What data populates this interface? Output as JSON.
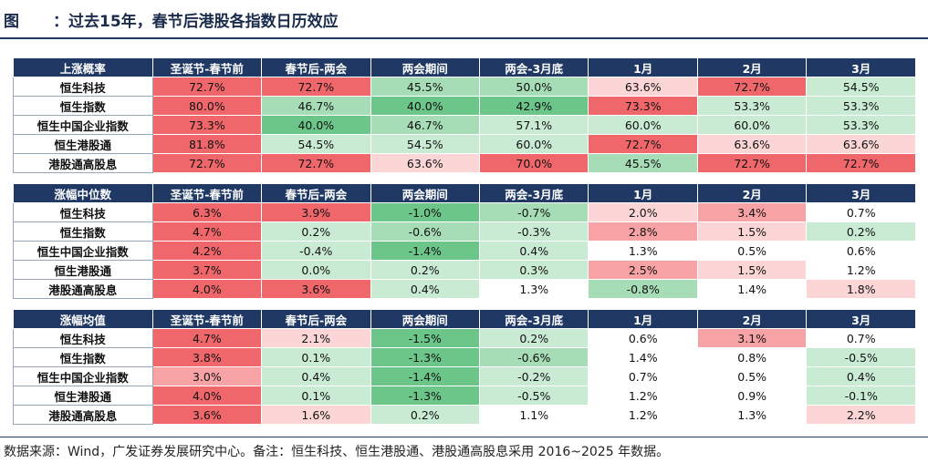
{
  "title_prefix": "图",
  "title_text": "：过去15年，春节后港股各指数日历效应",
  "footnote": "数据来源：Wind，广发证券发展研究中心。备注：恒生科技、恒生港股通、港股通高股息采用 2016~2025 年数据。",
  "columns": [
    "圣诞节-春节前",
    "春节后-两会",
    "两会期间",
    "两会-3月底",
    "1月",
    "2月",
    "3月"
  ],
  "tables": [
    {
      "header": "上涨概率",
      "rows": [
        {
          "label": "恒生科技",
          "cells": [
            "72.7%",
            "72.7%",
            "45.5%",
            "50.0%",
            "63.6%",
            "72.7%",
            "54.5%"
          ]
        },
        {
          "label": "恒生指数",
          "cells": [
            "80.0%",
            "46.7%",
            "40.0%",
            "42.9%",
            "73.3%",
            "53.3%",
            "53.3%"
          ]
        },
        {
          "label": "恒生中国企业指数",
          "cells": [
            "73.3%",
            "40.0%",
            "46.7%",
            "57.1%",
            "60.0%",
            "60.0%",
            "53.3%"
          ]
        },
        {
          "label": "恒生港股通",
          "cells": [
            "81.8%",
            "54.5%",
            "54.5%",
            "60.0%",
            "72.7%",
            "63.6%",
            "63.6%"
          ]
        },
        {
          "label": "港股通高股息",
          "cells": [
            "72.7%",
            "72.7%",
            "63.6%",
            "70.0%",
            "45.5%",
            "72.7%",
            "72.7%"
          ]
        }
      ]
    },
    {
      "header": "涨幅中位数",
      "rows": [
        {
          "label": "恒生科技",
          "cells": [
            "6.3%",
            "3.9%",
            "-1.0%",
            "-0.7%",
            "2.0%",
            "3.4%",
            "0.7%"
          ]
        },
        {
          "label": "恒生指数",
          "cells": [
            "4.7%",
            "0.2%",
            "-0.6%",
            "-0.3%",
            "2.8%",
            "1.5%",
            "0.2%"
          ]
        },
        {
          "label": "恒生中国企业指数",
          "cells": [
            "4.2%",
            "-0.4%",
            "-1.4%",
            "0.4%",
            "1.3%",
            "0.5%",
            "0.6%"
          ]
        },
        {
          "label": "恒生港股通",
          "cells": [
            "3.7%",
            "0.0%",
            "0.2%",
            "0.3%",
            "2.5%",
            "1.5%",
            "1.2%"
          ]
        },
        {
          "label": "港股通高股息",
          "cells": [
            "4.0%",
            "3.6%",
            "0.4%",
            "1.3%",
            "-0.8%",
            "1.4%",
            "1.8%"
          ]
        }
      ]
    },
    {
      "header": "涨幅均值",
      "rows": [
        {
          "label": "恒生科技",
          "cells": [
            "4.7%",
            "2.1%",
            "-1.5%",
            "0.2%",
            "0.6%",
            "3.1%",
            "0.7%"
          ]
        },
        {
          "label": "恒生指数",
          "cells": [
            "3.8%",
            "0.1%",
            "-1.3%",
            "-0.6%",
            "1.4%",
            "0.8%",
            "-0.5%"
          ]
        },
        {
          "label": "恒生中国企业指数",
          "cells": [
            "3.0%",
            "0.4%",
            "-1.4%",
            "-0.2%",
            "0.7%",
            "0.5%",
            "0.4%"
          ]
        },
        {
          "label": "恒生港股通",
          "cells": [
            "4.0%",
            "0.1%",
            "-1.3%",
            "-0.5%",
            "1.2%",
            "0.9%",
            "-0.1%"
          ]
        },
        {
          "label": "港股通高股息",
          "cells": [
            "3.6%",
            "1.6%",
            "0.2%",
            "1.1%",
            "1.2%",
            "1.3%",
            "2.2%"
          ]
        }
      ]
    }
  ],
  "colors": {
    "header_bg": "#1f3864",
    "red_strong": "#f0676b",
    "red_medium": "#f7a2a4",
    "red_light": "#fcd6d6",
    "neutral": "#ffffff",
    "green_light": "#c9ebd3",
    "green_medium": "#a6ddb6",
    "green_strong": "#6cc68a"
  }
}
